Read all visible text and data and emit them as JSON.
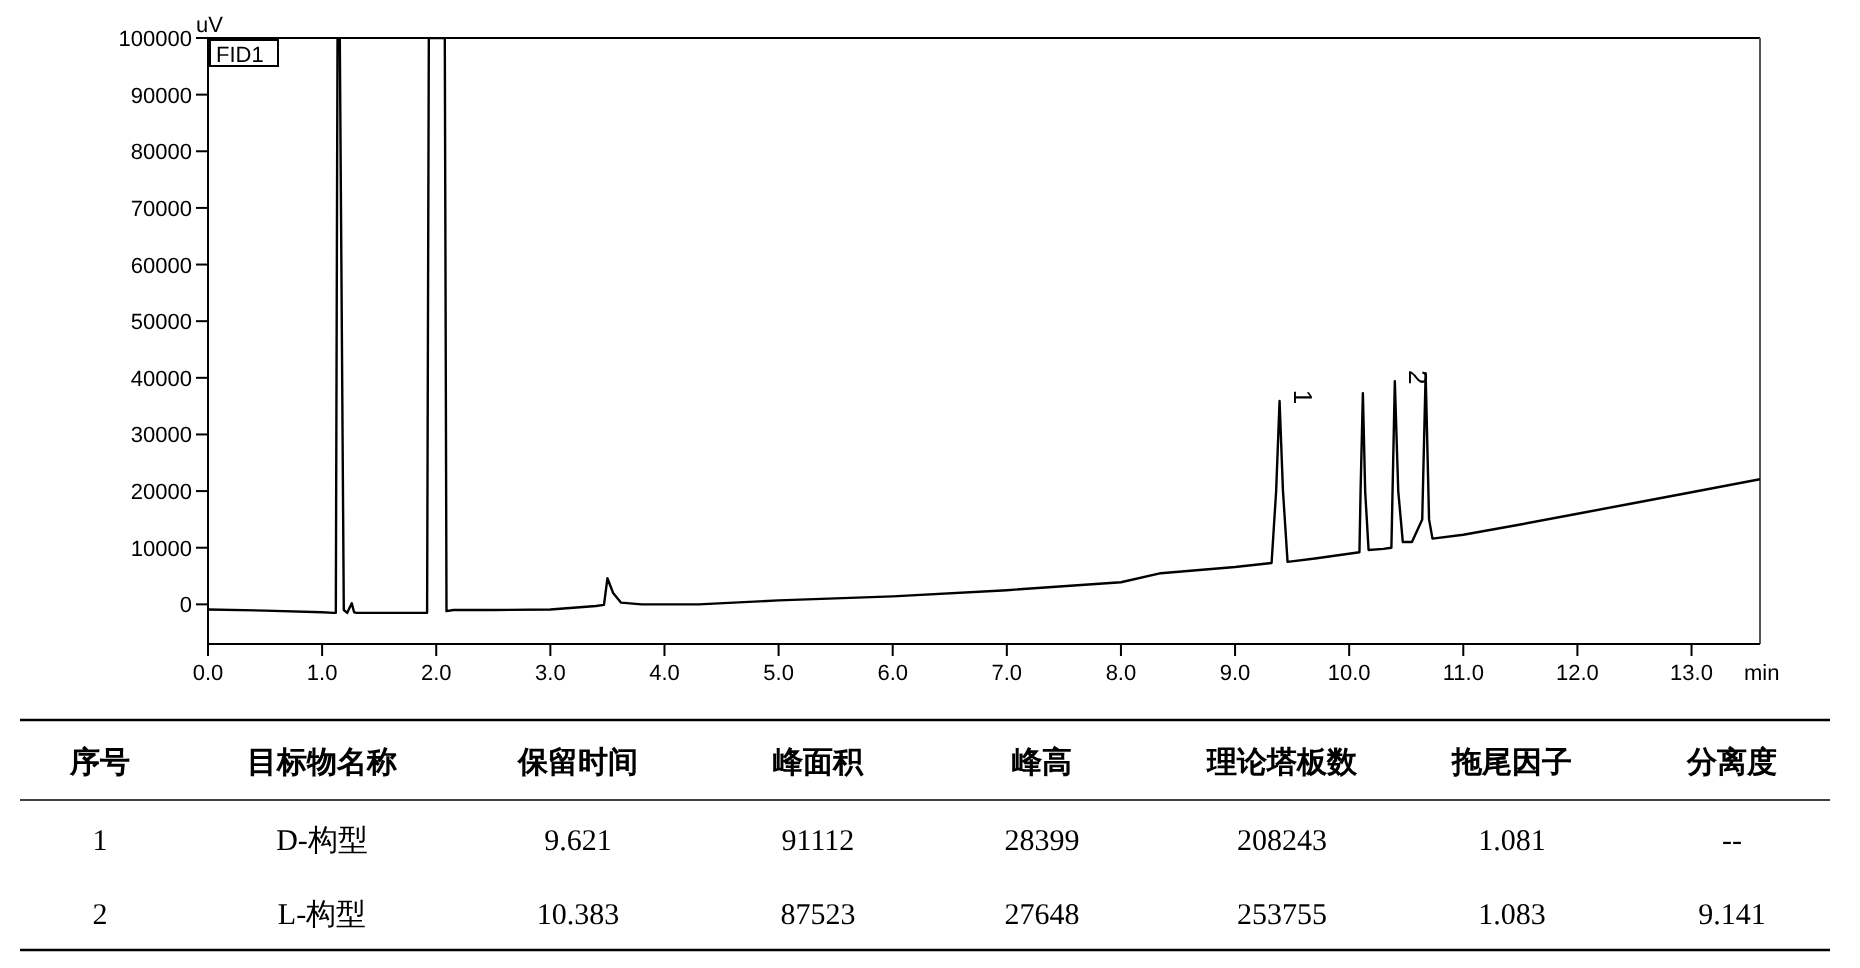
{
  "chart_data": {
    "type": "line",
    "xlabel": "min",
    "ylabel": "uV",
    "xlim": [
      0,
      13.6
    ],
    "ylim": [
      -7000,
      100000
    ],
    "xticks": [
      {
        "value": 0,
        "label": "0.0"
      },
      {
        "value": 1,
        "label": "1.0"
      },
      {
        "value": 2,
        "label": "2.0"
      },
      {
        "value": 3,
        "label": "3.0"
      },
      {
        "value": 4,
        "label": "4.0"
      },
      {
        "value": 5,
        "label": "5.0"
      },
      {
        "value": 6,
        "label": "6.0"
      },
      {
        "value": 7,
        "label": "7.0"
      },
      {
        "value": 8,
        "label": "8.0"
      },
      {
        "value": 9,
        "label": "9.0"
      },
      {
        "value": 10,
        "label": "10.0"
      },
      {
        "value": 11,
        "label": "11.0"
      },
      {
        "value": 12,
        "label": "12.0"
      },
      {
        "value": 13,
        "label": "13.0"
      }
    ],
    "yticks": [
      0,
      10000,
      20000,
      30000,
      40000,
      50000,
      60000,
      70000,
      80000,
      90000,
      100000
    ],
    "legend": "top left",
    "marker": "none",
    "line_style": "solid",
    "series": [
      {
        "name": "FID1",
        "color": "#000000",
        "x": [
          0,
          0.5,
          1.0,
          1.1,
          1.12,
          1.135,
          1.155,
          1.19,
          1.22,
          1.26,
          1.28,
          1.3,
          1.5,
          1.9,
          1.92,
          1.935,
          2.075,
          2.09,
          2.15,
          2.5,
          3.0,
          3.4,
          3.47,
          3.5,
          3.55,
          3.62,
          3.8,
          4.3,
          5,
          6,
          7,
          8,
          8.35,
          9,
          9.32,
          9.36,
          9.39,
          9.42,
          9.46,
          9.7,
          10.09,
          10.1,
          10.12,
          10.14,
          10.17,
          10.3,
          10.37,
          10.4,
          10.43,
          10.47,
          10.55,
          10.64,
          10.67,
          10.7,
          10.73,
          11,
          11.5,
          12,
          12.5,
          13,
          13.6
        ],
        "values": [
          -900,
          -1100,
          -1400,
          -1500,
          -1500,
          100000,
          100000,
          -1000,
          -1500,
          200,
          -1400,
          -1500,
          -1500,
          -1500,
          -1500,
          100000,
          100000,
          -1200,
          -1000,
          -1000,
          -900,
          -300,
          -100,
          4600,
          2000,
          300,
          0,
          0,
          700,
          1400,
          2500,
          3900,
          5500,
          6600,
          7300,
          20000,
          35900,
          20000,
          7500,
          8100,
          9200,
          20000,
          37300,
          20000,
          9600,
          9800,
          10000,
          39400,
          20000,
          11000,
          11000,
          15000,
          40800,
          15000,
          11600,
          12300,
          14100,
          16000,
          17900,
          19800,
          22100
        ]
      }
    ],
    "annotations": [
      {
        "text": "1",
        "x": 9.39,
        "y": 35900
      },
      {
        "text": "2",
        "x": 10.4,
        "y": 39400
      },
      "序号",
      "目标物名称",
      "保留时间",
      "峰面积",
      "峰高",
      "理论塔板数",
      "拖尾因子",
      "分离度",
      "1",
      "D-构型",
      "9.621",
      "91112",
      "28399",
      "208243",
      "1.081",
      "--",
      "2",
      "L-构型",
      "10.383",
      "87523",
      "27648",
      "253755",
      "1.083",
      "9.141"
    ]
  }
}
